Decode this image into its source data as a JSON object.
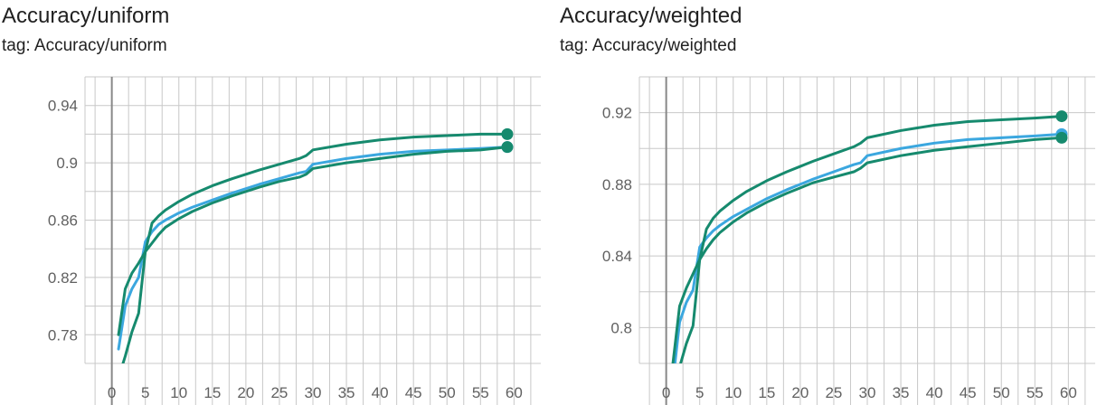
{
  "charts": [
    {
      "title": "Accuracy/uniform",
      "tag": "tag: Accuracy/uniform"
    },
    {
      "title": "Accuracy/weighted",
      "tag": "tag: Accuracy/weighted"
    }
  ],
  "colors": {
    "series_dark": "#168a6e",
    "series_light": "#3ba7df",
    "grid": "#c8c8c8",
    "zero_axis": "#888888",
    "tick_text": "#616161"
  },
  "chart_data": [
    {
      "type": "line",
      "title": "Accuracy/uniform",
      "xlabel": "",
      "ylabel": "",
      "x_ticks": [
        "0",
        "5",
        "10",
        "15",
        "20",
        "25",
        "30",
        "35",
        "40",
        "45",
        "50",
        "55",
        "60"
      ],
      "y_ticks": [
        "0.78",
        "0.82",
        "0.86",
        "0.9",
        "0.94"
      ],
      "xlim": [
        -4,
        64
      ],
      "ylim": [
        0.76,
        0.96
      ],
      "grid": true,
      "series": [
        {
          "color": "#168a6e",
          "x": [
            1,
            2,
            3,
            4,
            5,
            6,
            7,
            8,
            10,
            12,
            15,
            18,
            20,
            22,
            25,
            28,
            29,
            30,
            35,
            40,
            45,
            50,
            55,
            59
          ],
          "y": [
            0.78,
            0.812,
            0.823,
            0.83,
            0.838,
            0.858,
            0.863,
            0.867,
            0.873,
            0.878,
            0.884,
            0.889,
            0.892,
            0.895,
            0.899,
            0.903,
            0.905,
            0.909,
            0.913,
            0.916,
            0.918,
            0.919,
            0.92,
            0.92
          ],
          "marker_last": true
        },
        {
          "color": "#3ba7df",
          "x": [
            1,
            2,
            3,
            4,
            5,
            6,
            7,
            8,
            10,
            12,
            15,
            18,
            20,
            22,
            25,
            28,
            29,
            30,
            35,
            40,
            45,
            50,
            55,
            59
          ],
          "y": [
            0.77,
            0.8,
            0.812,
            0.82,
            0.845,
            0.852,
            0.857,
            0.86,
            0.865,
            0.869,
            0.874,
            0.879,
            0.882,
            0.885,
            0.889,
            0.893,
            0.894,
            0.899,
            0.903,
            0.906,
            0.908,
            0.909,
            0.91,
            0.911
          ],
          "marker_last": true
        },
        {
          "color": "#168a6e",
          "x": [
            1,
            2,
            3,
            4,
            5,
            6,
            7,
            8,
            10,
            12,
            15,
            18,
            20,
            22,
            25,
            28,
            29,
            30,
            35,
            40,
            45,
            50,
            55,
            59
          ],
          "y": [
            0.75,
            0.765,
            0.782,
            0.795,
            0.838,
            0.844,
            0.85,
            0.855,
            0.861,
            0.866,
            0.872,
            0.877,
            0.88,
            0.883,
            0.887,
            0.89,
            0.892,
            0.896,
            0.9,
            0.903,
            0.906,
            0.908,
            0.909,
            0.911
          ],
          "marker_last": true
        }
      ]
    },
    {
      "type": "line",
      "title": "Accuracy/weighted",
      "xlabel": "",
      "ylabel": "",
      "x_ticks": [
        "0",
        "5",
        "10",
        "15",
        "20",
        "25",
        "30",
        "35",
        "40",
        "45",
        "50",
        "55",
        "60"
      ],
      "y_ticks": [
        "0.8",
        "0.84",
        "0.88",
        "0.92"
      ],
      "xlim": [
        -4,
        64
      ],
      "ylim": [
        0.78,
        0.94
      ],
      "grid": true,
      "series": [
        {
          "color": "#168a6e",
          "x": [
            1,
            2,
            3,
            4,
            5,
            6,
            7,
            8,
            10,
            12,
            15,
            18,
            20,
            22,
            25,
            28,
            29,
            30,
            35,
            40,
            45,
            50,
            55,
            59
          ],
          "y": [
            0.78,
            0.812,
            0.822,
            0.83,
            0.838,
            0.855,
            0.861,
            0.865,
            0.871,
            0.876,
            0.882,
            0.887,
            0.89,
            0.893,
            0.897,
            0.901,
            0.903,
            0.906,
            0.91,
            0.913,
            0.915,
            0.916,
            0.917,
            0.918
          ],
          "marker_last": true
        },
        {
          "color": "#3ba7df",
          "x": [
            1,
            2,
            3,
            4,
            5,
            6,
            7,
            8,
            10,
            12,
            15,
            18,
            20,
            22,
            25,
            28,
            29,
            30,
            35,
            40,
            45,
            50,
            55,
            59
          ],
          "y": [
            0.77,
            0.803,
            0.814,
            0.821,
            0.845,
            0.85,
            0.854,
            0.857,
            0.862,
            0.866,
            0.872,
            0.877,
            0.88,
            0.883,
            0.887,
            0.891,
            0.892,
            0.896,
            0.9,
            0.903,
            0.905,
            0.906,
            0.907,
            0.908
          ],
          "marker_last": true
        },
        {
          "color": "#168a6e",
          "x": [
            1,
            2,
            3,
            4,
            5,
            6,
            7,
            8,
            10,
            12,
            15,
            18,
            20,
            22,
            25,
            28,
            29,
            30,
            35,
            40,
            45,
            50,
            55,
            59
          ],
          "y": [
            0.76,
            0.778,
            0.791,
            0.801,
            0.838,
            0.844,
            0.849,
            0.853,
            0.859,
            0.864,
            0.87,
            0.875,
            0.878,
            0.881,
            0.884,
            0.887,
            0.889,
            0.892,
            0.896,
            0.899,
            0.901,
            0.903,
            0.905,
            0.906
          ],
          "marker_last": true
        }
      ]
    }
  ]
}
